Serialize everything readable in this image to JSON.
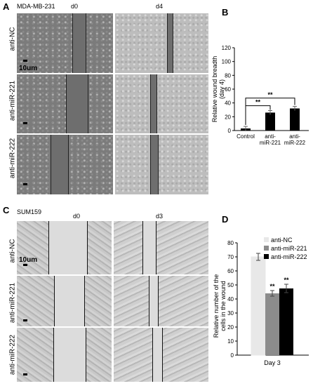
{
  "panel_a": {
    "letter": "A",
    "cell_line": "MDA-MB-231",
    "col_headers": [
      "d0",
      "d4"
    ],
    "row_labels": [
      "anti-NC",
      "anti-miR-221",
      "anti-miR-222"
    ],
    "scale_label": "10um"
  },
  "panel_b": {
    "letter": "B",
    "chart_data": {
      "type": "bar",
      "categories": [
        "Control",
        "anti-\nmiR-221",
        "anti-\nmiR-222"
      ],
      "values": [
        3,
        26,
        32
      ],
      "errors": [
        3,
        3,
        3
      ],
      "ylabel": "Relative wound breadth\n(day 4)",
      "ylim": [
        0,
        120
      ],
      "yticks": [
        0,
        20,
        40,
        60,
        80,
        100,
        120
      ],
      "significance": [
        "**",
        "**"
      ],
      "bar_color": "#000000",
      "grid": false
    }
  },
  "panel_c": {
    "letter": "C",
    "cell_line": "SUM159",
    "col_headers": [
      "d0",
      "d3"
    ],
    "row_labels": [
      "anti-NC",
      "anti-miR-221",
      "anti-miR-222"
    ],
    "scale_label": "10um"
  },
  "panel_d": {
    "letter": "D",
    "chart_data": {
      "type": "bar",
      "categories": [
        "Day 3"
      ],
      "series": [
        {
          "name": "anti-NC",
          "values": [
            70
          ],
          "error": [
            2.5
          ],
          "color": "#e8e8e8"
        },
        {
          "name": "anti-miR-221",
          "values": [
            44
          ],
          "error": [
            2
          ],
          "color": "#8c8c8c"
        },
        {
          "name": "anti-miR-222",
          "values": [
            47.5
          ],
          "error": [
            3
          ],
          "color": "#000000"
        }
      ],
      "ylabel": "Relative number of the\ncells in the wound",
      "ylim": [
        0,
        80
      ],
      "yticks": [
        0,
        10,
        20,
        30,
        40,
        50,
        60,
        70,
        80
      ],
      "significance": [
        "",
        "**",
        "**"
      ],
      "legend_position": "top-right",
      "grid": false
    }
  }
}
